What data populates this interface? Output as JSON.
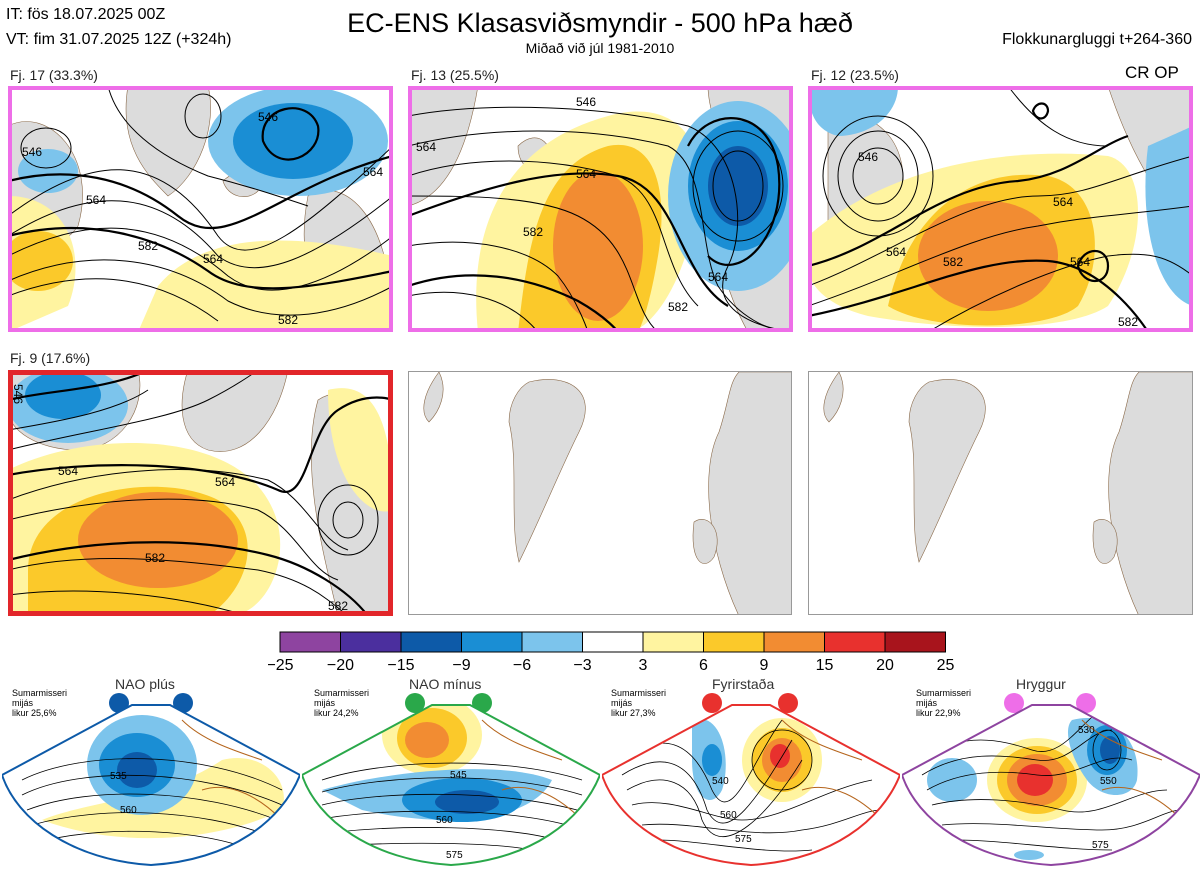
{
  "header": {
    "it_line": "IT: fös 18.07.2025 00Z",
    "vt_line": "VT: fim 31.07.2025 12Z  (+324h)",
    "title": "EC-ENS Klasasviðsmyndir - 500 hPa hæð",
    "subtitle": "Miðað við júl 1981-2010",
    "window": "Flokkunargluggi t+264-360",
    "cr_op": "CR OP"
  },
  "panels": [
    {
      "label": "Fj. 17 (33.3%)",
      "border": "#ee6ee8",
      "contours": [
        "546",
        "564",
        "582",
        "564",
        "546",
        "564",
        "582"
      ]
    },
    {
      "label": "Fj. 13 (25.5%)",
      "border": "#ee6ee8",
      "contours": [
        "546",
        "564",
        "564",
        "582",
        "564",
        "582"
      ]
    },
    {
      "label": "Fj. 12 (23.5%)",
      "border": "#ee6ee8",
      "contours": [
        "546",
        "564",
        "582",
        "564",
        "564",
        "582"
      ]
    },
    {
      "label": "Fj. 9 (17.6%)",
      "border": "#e2262a",
      "contours": [
        "546",
        "564",
        "564",
        "582",
        "582"
      ]
    }
  ],
  "chart_data": {
    "type": "heatmap",
    "title": "EC-ENS Klasasviðsmyndir - 500 hPa hæð",
    "colorbar": {
      "ticks": [
        "−25",
        "−20",
        "−15",
        "−9",
        "−6",
        "−3",
        "3",
        "6",
        "9",
        "15",
        "20",
        "25"
      ],
      "colors": [
        "#8e44a0",
        "#4b2f9e",
        "#0d5aa8",
        "#1a8ed4",
        "#7cc4ec",
        "#ffffff",
        "#fff4a0",
        "#fbc92a",
        "#f28c32",
        "#e8312e",
        "#a8141c"
      ]
    },
    "clusters": [
      {
        "name": "Fj. 17",
        "share_pct": 33.3
      },
      {
        "name": "Fj. 13",
        "share_pct": 25.5
      },
      {
        "name": "Fj. 12",
        "share_pct": 23.5
      },
      {
        "name": "Fj. 9",
        "share_pct": 17.6
      }
    ],
    "regimes": [
      {
        "name": "NAO plús",
        "text": [
          "Sumarmisseri",
          "mijás",
          "likur 25,6%"
        ],
        "color": "#0d5aa8",
        "contours": [
          "535",
          "560"
        ]
      },
      {
        "name": "NAO mínus",
        "text": [
          "Sumarmisseri",
          "mijás",
          "likur 24,2%"
        ],
        "color": "#2aa84a",
        "contours": [
          "545",
          "560",
          "575"
        ]
      },
      {
        "name": "Fyrirstaða",
        "text": [
          "Sumarmisseri",
          "mijás",
          "likur 27,3%"
        ],
        "color": "#e8312e",
        "contours": [
          "540",
          "560",
          "575"
        ]
      },
      {
        "name": "Hryggur",
        "text": [
          "Sumarmisseri",
          "mijás",
          "likur 22,9%"
        ],
        "color": "#ee6ee8",
        "contours": [
          "530",
          "550",
          "575"
        ]
      }
    ]
  }
}
